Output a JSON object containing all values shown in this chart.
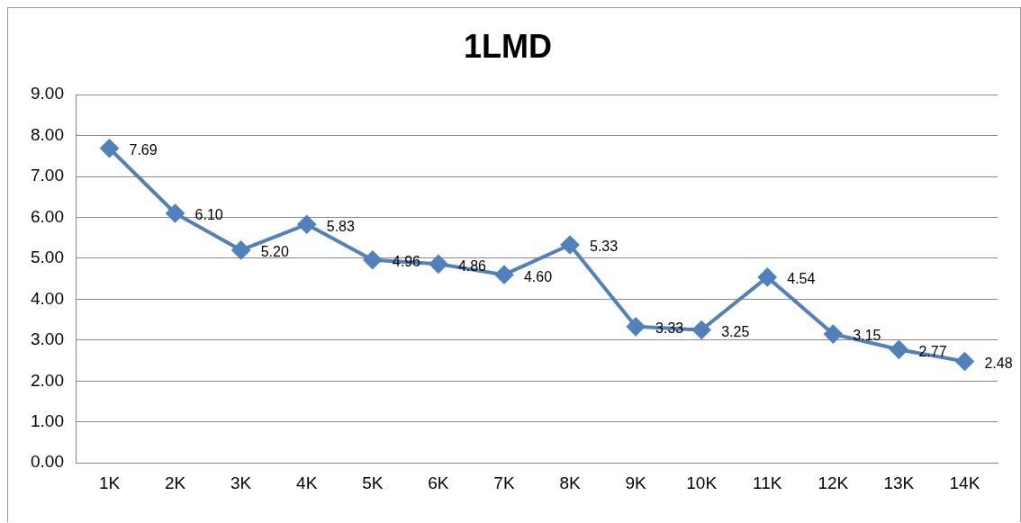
{
  "chart_data": {
    "type": "line",
    "title": "1LMD",
    "categories": [
      "1K",
      "2K",
      "3K",
      "4K",
      "5K",
      "6K",
      "7K",
      "8K",
      "9K",
      "10K",
      "11K",
      "12K",
      "13K",
      "14K"
    ],
    "series": [
      {
        "color": "#4f81bd",
        "values": [
          7.69,
          6.1,
          5.2,
          5.83,
          4.96,
          4.86,
          4.6,
          5.33,
          3.33,
          3.25,
          4.54,
          3.15,
          2.77,
          2.48
        ],
        "value_labels": [
          "7.69",
          "6.10",
          "5.20",
          "5.83",
          "4.96",
          "4.86",
          "4.60",
          "5.33",
          "3.33",
          "3.25",
          "4.54",
          "3.15",
          "2.77",
          "2.48"
        ]
      }
    ],
    "ylim": [
      0,
      9
    ],
    "yticks": [
      {
        "value": 0,
        "label": "0.00"
      },
      {
        "value": 1,
        "label": "1.00"
      },
      {
        "value": 2,
        "label": "2.00"
      },
      {
        "value": 3,
        "label": "3.00"
      },
      {
        "value": 4,
        "label": "4.00"
      },
      {
        "value": 5,
        "label": "5.00"
      },
      {
        "value": 6,
        "label": "6.00"
      },
      {
        "value": 7,
        "label": "7.00"
      },
      {
        "value": 8,
        "label": "8.00"
      },
      {
        "value": 9,
        "label": "9.00"
      }
    ],
    "grid": "y",
    "legend": false,
    "marker": "diamond",
    "line_style": "solid"
  }
}
